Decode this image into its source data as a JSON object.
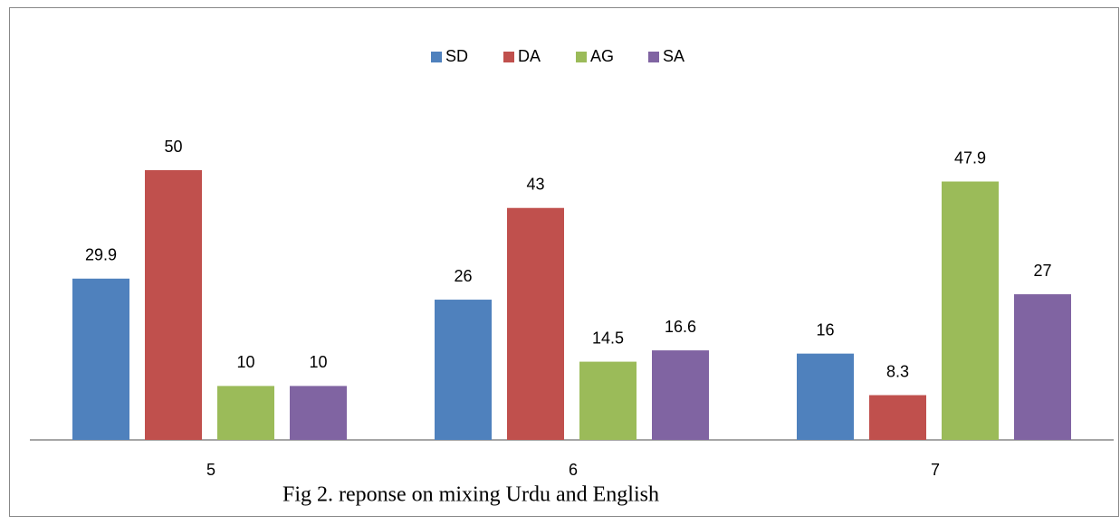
{
  "chart_data": {
    "type": "bar",
    "caption": "Fig 2. reponse on mixing Urdu and English",
    "categories": [
      "5",
      "6",
      "7"
    ],
    "series": [
      {
        "name": "SD",
        "color": "#4f81bd",
        "values": [
          29.9,
          26,
          16
        ]
      },
      {
        "name": "DA",
        "color": "#c0504d",
        "values": [
          50,
          43,
          8.3
        ]
      },
      {
        "name": "AG",
        "color": "#9bbb59",
        "values": [
          10,
          14.5,
          47.9
        ]
      },
      {
        "name": "SA",
        "color": "#8064a2",
        "values": [
          10,
          16.6,
          27
        ]
      }
    ],
    "legend": "top"
  }
}
